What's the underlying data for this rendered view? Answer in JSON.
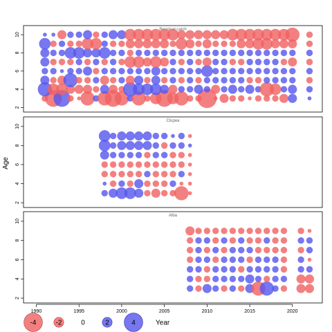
{
  "chart_data": {
    "type": "bubble-residuals",
    "ylabel": "Age",
    "xlabel": "Year",
    "x_ticks": [
      1990,
      1995,
      2000,
      2005,
      2010,
      2015,
      2020
    ],
    "y_ticks": [
      2,
      4,
      6,
      8,
      10
    ],
    "xlim": [
      1988.5,
      2023.5
    ],
    "ylim": [
      1.5,
      11
    ],
    "colors": {
      "negative": "#f06060",
      "positive": "#5555ee"
    },
    "legend": {
      "values": [
        -4,
        -2,
        0,
        2,
        4
      ],
      "labels": [
        "-4",
        "-2",
        "0",
        "2",
        "4"
      ],
      "axis_label": "Year"
    },
    "panels": [
      {
        "title": "Residual catch",
        "years": [
          1991,
          1992,
          1993,
          1994,
          1995,
          1996,
          1997,
          1998,
          1999,
          2000,
          2001,
          2002,
          2003,
          2004,
          2005,
          2006,
          2007,
          2008,
          2009,
          2010,
          2011,
          2012,
          2013,
          2014,
          2015,
          2016,
          2017,
          2018,
          2019,
          2020,
          2022
        ],
        "ages": [
          3,
          4,
          5,
          6,
          7,
          8,
          9,
          10
        ],
        "residuals": [
          [
            -1.0,
            -3.0,
            3.0,
            -1.0,
            -0.5,
            -2.5,
            1.0,
            -2.5,
            -3.0,
            -2.5,
            1.0,
            -2.5,
            -1.0,
            -2.0,
            -3.0,
            -2.0,
            -2.5,
            -1.0,
            -1.0,
            -3.5,
            -0.5,
            -1.5,
            -1.0,
            -1.0,
            -0.5,
            -1.0,
            -1.0,
            -1.0,
            -1.5,
            1.5,
            0.5
          ],
          [
            2.5,
            -2.0,
            -2.0,
            -1.5,
            -1.5,
            -1.5,
            -1.0,
            1.5,
            -1.5,
            -1.0,
            2.5,
            2.0,
            2.0,
            2.0,
            1.5,
            -1.5,
            1.0,
            1.0,
            1.5,
            1.0,
            -1.5,
            1.0,
            1.5,
            1.0,
            1.5,
            1.0,
            -2.5,
            -2.0,
            1.0,
            1.5,
            1.0
          ],
          [
            1.5,
            -1.0,
            -1.5,
            2.5,
            -1.0,
            -1.0,
            1.0,
            -1.5,
            -1.0,
            1.0,
            -1.5,
            1.5,
            -1.0,
            1.5,
            -1.0,
            1.0,
            -1.0,
            1.0,
            -1.0,
            1.0,
            1.0,
            1.0,
            1.0,
            1.0,
            -1.0,
            -1.0,
            1.0,
            1.0,
            1.0,
            1.0,
            -1.0
          ],
          [
            1.0,
            1.0,
            0.5,
            1.0,
            1.0,
            1.5,
            -1.0,
            1.0,
            1.0,
            1.0,
            1.0,
            1.0,
            1.0,
            1.5,
            1.0,
            1.0,
            1.0,
            1.0,
            1.0,
            2.0,
            1.0,
            1.0,
            1.0,
            1.0,
            1.0,
            1.0,
            1.0,
            1.0,
            1.0,
            1.0,
            1.0
          ],
          [
            1.5,
            -1.0,
            -1.0,
            -1.0,
            1.0,
            -1.0,
            1.0,
            -1.0,
            1.0,
            -1.0,
            -2.0,
            -2.0,
            -1.5,
            -2.0,
            -1.5,
            1.0,
            -1.0,
            1.0,
            -1.0,
            -1.5,
            1.0,
            1.0,
            -1.0,
            -1.0,
            1.0,
            1.0,
            1.0,
            1.0,
            -1.0,
            -1.5,
            -1.0
          ],
          [
            1.5,
            1.0,
            1.0,
            2.0,
            2.0,
            1.5,
            1.5,
            2.0,
            1.0,
            1.0,
            -1.0,
            1.0,
            1.0,
            1.0,
            1.0,
            1.0,
            1.0,
            1.0,
            1.0,
            1.0,
            1.0,
            1.0,
            1.0,
            1.0,
            1.0,
            1.0,
            1.0,
            1.0,
            1.0,
            1.0,
            1.0
          ],
          [
            2.0,
            -1.0,
            1.0,
            -1.0,
            -1.0,
            -2.0,
            -2.0,
            1.0,
            -1.0,
            -1.0,
            -1.5,
            -1.5,
            -1.5,
            -1.5,
            -1.5,
            -1.0,
            -2.0,
            -1.5,
            -1.0,
            -1.5,
            -1.0,
            -1.0,
            -1.0,
            -1.5,
            -1.5,
            -2.0,
            -2.0,
            -1.5,
            -1.5,
            -1.5,
            -1.0
          ],
          [
            0.5,
            0.5,
            -1.5,
            1.0,
            1.0,
            1.5,
            -1.0,
            1.0,
            1.5,
            1.5,
            -2.0,
            -2.0,
            -2.0,
            -2.0,
            -2.0,
            -2.0,
            -1.5,
            -1.5,
            -1.5,
            -1.5,
            -1.5,
            -1.5,
            -2.0,
            -2.0,
            -2.0,
            -2.0,
            -2.0,
            -2.0,
            -2.0,
            -2.5,
            -1.0
          ]
        ]
      },
      {
        "title": "Clupea",
        "years": [
          1998,
          1999,
          2000,
          2001,
          2002,
          2003,
          2004,
          2005,
          2006,
          2007,
          2008
        ],
        "ages": [
          3,
          4,
          5,
          6,
          7,
          8,
          9
        ],
        "residuals": [
          [
            1.0,
            1.5,
            2.0,
            2.0,
            1.5,
            -1.0,
            -1.5,
            -1.0,
            -1.0,
            -2.5,
            -0.5
          ],
          [
            0.5,
            -1.0,
            1.0,
            -1.0,
            1.5,
            -1.0,
            -1.0,
            -1.0,
            1.0,
            -0.5,
            -0.5
          ],
          [
            -1.0,
            -1.0,
            -1.0,
            -1.0,
            -1.0,
            1.0,
            -1.0,
            -1.0,
            -1.0,
            1.0,
            -0.5
          ],
          [
            -1.0,
            -1.0,
            -1.0,
            -1.0,
            -1.0,
            -1.0,
            -1.0,
            -1.0,
            -1.0,
            -1.0,
            -0.5
          ],
          [
            1.5,
            1.0,
            1.0,
            1.0,
            1.0,
            -1.0,
            1.0,
            1.0,
            -1.0,
            -1.0,
            -0.5
          ],
          [
            2.0,
            1.0,
            1.5,
            1.5,
            1.5,
            1.5,
            1.0,
            -1.0,
            1.0,
            1.0,
            0.5
          ],
          [
            2.0,
            1.0,
            1.5,
            1.5,
            1.5,
            1.5,
            1.0,
            1.0,
            0.5,
            1.0,
            -0.5
          ]
        ]
      },
      {
        "title": "Alba",
        "years": [
          2008,
          2009,
          2010,
          2011,
          2012,
          2013,
          2014,
          2015,
          2016,
          2017,
          2018,
          2019,
          2021,
          2022
        ],
        "ages": [
          3,
          4,
          5,
          6,
          7,
          8,
          9
        ],
        "residuals": [
          [
            1.0,
            -1.0,
            1.5,
            1.0,
            -1.0,
            1.0,
            -1.0,
            1.5,
            -2.5,
            2.5,
            1.0,
            -1.0,
            -1.5,
            -1.5
          ],
          [
            1.0,
            -1.0,
            -1.0,
            1.0,
            1.0,
            1.0,
            1.0,
            1.5,
            1.0,
            -1.0,
            1.0,
            1.0,
            -1.5,
            -1.5
          ],
          [
            1.0,
            1.0,
            -1.0,
            1.0,
            1.0,
            1.0,
            -1.0,
            1.0,
            1.0,
            1.0,
            1.0,
            -1.0,
            1.0,
            1.0
          ],
          [
            -1.0,
            1.0,
            1.0,
            -1.0,
            1.0,
            1.0,
            1.0,
            -1.0,
            1.0,
            1.0,
            1.0,
            -1.0,
            1.0,
            -0.5
          ],
          [
            -1.0,
            1.0,
            -1.0,
            1.0,
            -1.0,
            1.0,
            1.0,
            1.0,
            -1.0,
            -1.0,
            -1.0,
            -1.0,
            -1.0,
            1.0
          ],
          [
            -1.0,
            1.0,
            1.0,
            -1.0,
            1.0,
            -1.0,
            1.0,
            -1.0,
            -1.0,
            1.0,
            -1.0,
            -1.0,
            1.0,
            1.0
          ],
          [
            -1.5,
            -1.0,
            -1.0,
            -1.0,
            -1.0,
            -1.0,
            -1.0,
            -1.0,
            -1.0,
            -1.0,
            -1.0,
            -1.0,
            -1.0,
            -0.5
          ]
        ]
      }
    ]
  }
}
